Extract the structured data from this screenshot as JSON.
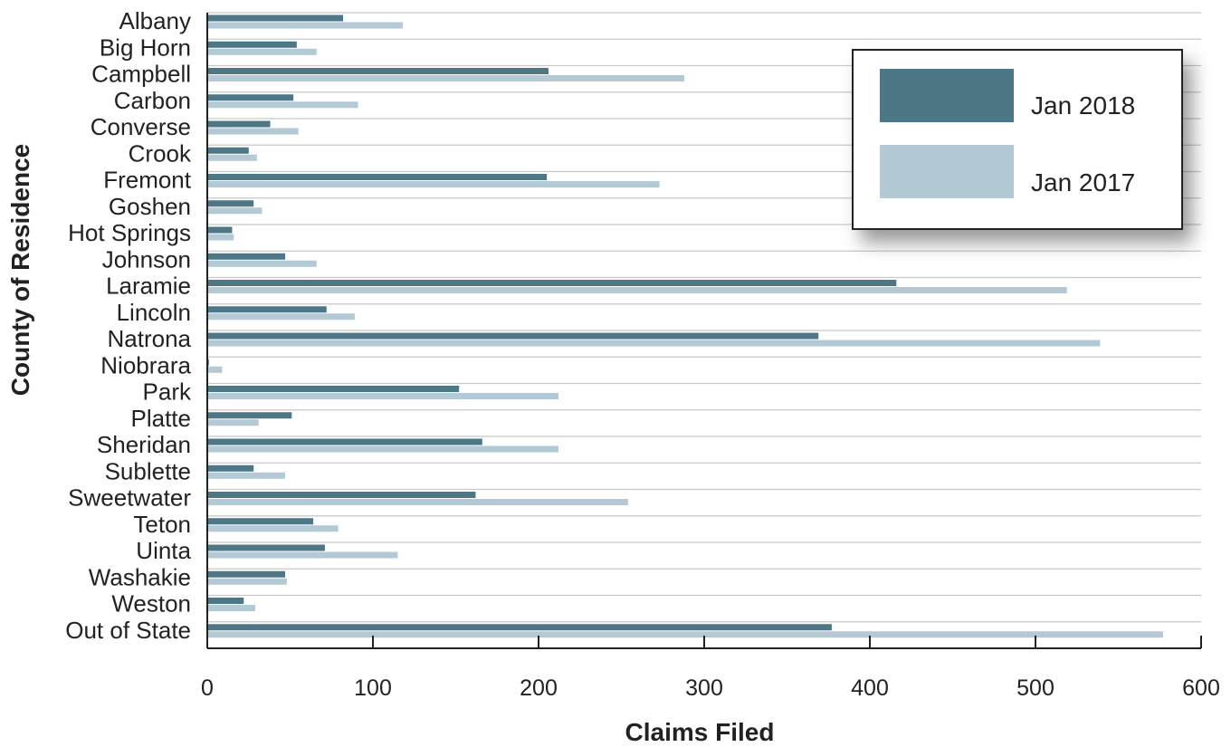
{
  "chart_data": {
    "type": "bar",
    "orientation": "horizontal",
    "title": "",
    "xlabel": "Claims Filed",
    "ylabel": "County of Residence",
    "xlim": [
      0,
      600
    ],
    "xticks": [
      "0",
      "100",
      "200",
      "300",
      "400",
      "500",
      "600"
    ],
    "grid": true,
    "legend_position": "top-right",
    "categories": [
      "Albany",
      "Big Horn",
      "Campbell",
      "Carbon",
      "Converse",
      "Crook",
      "Fremont",
      "Goshen",
      "Hot Springs",
      "Johnson",
      "Laramie",
      "Lincoln",
      "Natrona",
      "Niobrara",
      "Park",
      "Platte",
      "Sheridan",
      "Sublette",
      "Sweetwater",
      "Teton",
      "Uinta",
      "Washakie",
      "Weston",
      "Out of State"
    ],
    "series": [
      {
        "name": "Jan 2018",
        "color": "#4e7786",
        "values": [
          82,
          54,
          206,
          52,
          38,
          25,
          205,
          28,
          15,
          47,
          416,
          72,
          369,
          1,
          152,
          51,
          166,
          28,
          162,
          64,
          71,
          47,
          22,
          377
        ]
      },
      {
        "name": "Jan 2017",
        "color": "#b3c9d6",
        "values": [
          118,
          66,
          288,
          91,
          55,
          30,
          273,
          33,
          16,
          66,
          519,
          89,
          539,
          9,
          212,
          31,
          212,
          47,
          254,
          79,
          115,
          48,
          29,
          577
        ]
      }
    ]
  }
}
